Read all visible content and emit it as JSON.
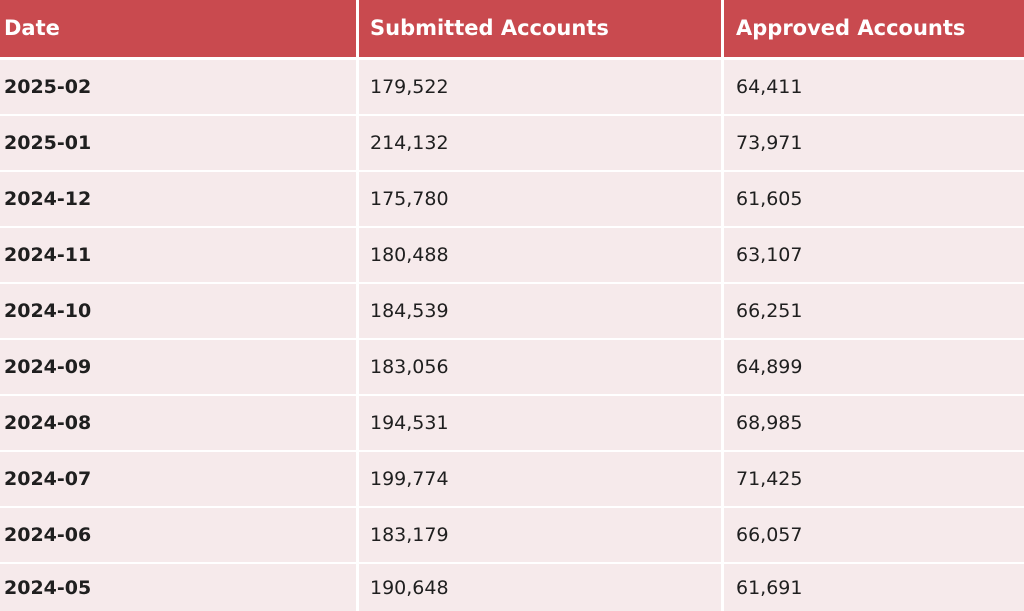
{
  "table": {
    "headers": [
      "Date",
      "Submitted Accounts",
      "Approved Accounts"
    ],
    "rows": [
      {
        "date": "2025-02",
        "submitted": "179,522",
        "approved": "64,411"
      },
      {
        "date": "2025-01",
        "submitted": "214,132",
        "approved": "73,971"
      },
      {
        "date": "2024-12",
        "submitted": "175,780",
        "approved": "61,605"
      },
      {
        "date": "2024-11",
        "submitted": "180,488",
        "approved": "63,107"
      },
      {
        "date": "2024-10",
        "submitted": "184,539",
        "approved": "66,251"
      },
      {
        "date": "2024-09",
        "submitted": "183,056",
        "approved": "64,899"
      },
      {
        "date": "2024-08",
        "submitted": "194,531",
        "approved": "68,985"
      },
      {
        "date": "2024-07",
        "submitted": "199,774",
        "approved": "71,425"
      },
      {
        "date": "2024-06",
        "submitted": "183,179",
        "approved": "66,057"
      },
      {
        "date": "2024-05",
        "submitted": "190,648",
        "approved": "61,691"
      }
    ]
  },
  "colors": {
    "header_bg": "#c94a4f",
    "header_text": "#ffffff",
    "row_bg": "#f6eaeb",
    "row_text": "#1f1f1f",
    "grid_line": "#ffffff"
  }
}
